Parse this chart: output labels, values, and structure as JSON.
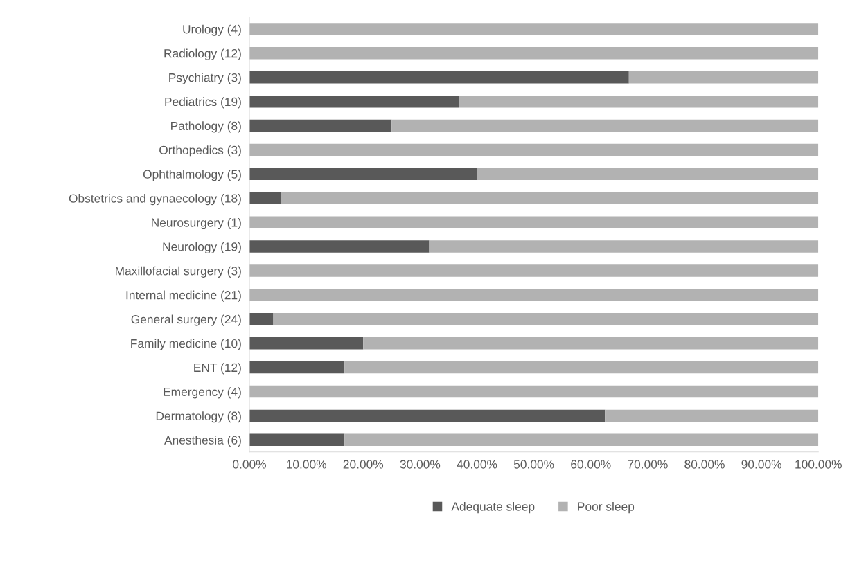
{
  "chart_data": {
    "type": "bar",
    "orientation": "horizontal",
    "stacked": true,
    "categories": [
      "Urology (4)",
      "Radiology (12)",
      "Psychiatry (3)",
      "Pediatrics (19)",
      "Pathology (8)",
      "Orthopedics (3)",
      "Ophthalmology (5)",
      "Obstetrics and gynaecology (18)",
      "Neurosurgery (1)",
      "Neurology (19)",
      "Maxillofacial surgery (3)",
      "Internal medicine (21)",
      "General surgery (24)",
      "Family medicine (10)",
      "ENT (12)",
      "Emergency (4)",
      "Dermatology (8)",
      "Anesthesia (6)"
    ],
    "series": [
      {
        "name": "Adequate sleep",
        "color": "#595959",
        "values": [
          0,
          0,
          66.7,
          36.8,
          25,
          0,
          40,
          5.6,
          0,
          31.6,
          0,
          0,
          4.2,
          20,
          16.7,
          0,
          62.5,
          16.7
        ]
      },
      {
        "name": "Poor sleep",
        "color": "#b2b2b2",
        "values": [
          100,
          100,
          33.3,
          63.2,
          75,
          100,
          60,
          94.4,
          100,
          68.4,
          100,
          100,
          95.8,
          80,
          83.3,
          100,
          37.5,
          83.3
        ]
      }
    ],
    "xlim": [
      0,
      100
    ],
    "xticks": [
      {
        "value": 0,
        "label": "0.00%"
      },
      {
        "value": 10,
        "label": "10.00%"
      },
      {
        "value": 20,
        "label": "20.00%"
      },
      {
        "value": 30,
        "label": "30.00%"
      },
      {
        "value": 40,
        "label": "40.00%"
      },
      {
        "value": 50,
        "label": "50.00%"
      },
      {
        "value": 60,
        "label": "60.00%"
      },
      {
        "value": 70,
        "label": "70.00%"
      },
      {
        "value": 80,
        "label": "80.00%"
      },
      {
        "value": 90,
        "label": "90.00%"
      },
      {
        "value": 100,
        "label": "100.00%"
      }
    ],
    "grid": false,
    "legend": "bottom"
  }
}
